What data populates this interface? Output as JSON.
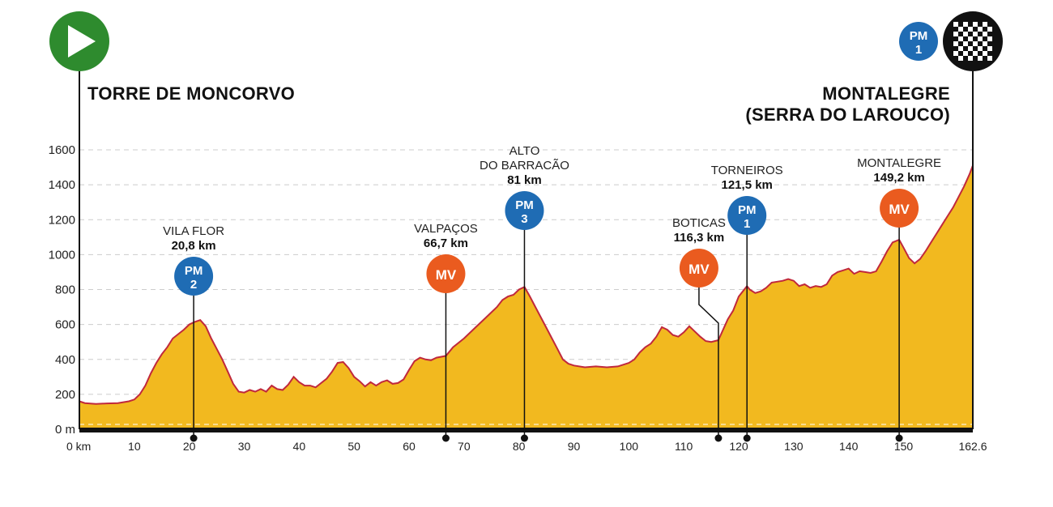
{
  "colors": {
    "terrain_fill": "#f2b91f",
    "profile_line": "#c0283c",
    "pm_badge": "#1f6cb4",
    "mv_badge": "#ea5b1f",
    "start_badge": "#2e8b2e",
    "finish_badge": "#111111",
    "grid": "#cccccc"
  },
  "start": {
    "town": "TORRE DE MONCORVO",
    "icon": "play-icon"
  },
  "finish": {
    "town_line1": "MONTALEGRE",
    "town_line2": "(SERRA DO LAROUCO)",
    "icon": "checkered-flag-icon",
    "badge": {
      "type": "PM",
      "number": "1"
    }
  },
  "chart_data": {
    "type": "area",
    "title": "",
    "xlabel": "",
    "ylabel": "",
    "x_unit": "km",
    "y_unit": "m",
    "xlim": [
      0,
      162.6
    ],
    "ylim": [
      0,
      1600
    ],
    "grid": true,
    "x_ticks": [
      "0 km",
      "10",
      "20",
      "30",
      "40",
      "50",
      "60",
      "70",
      "80",
      "90",
      "100",
      "110",
      "120",
      "130",
      "140",
      "150",
      "162.6"
    ],
    "x_tick_values": [
      0,
      10,
      20,
      30,
      40,
      50,
      60,
      70,
      80,
      90,
      100,
      110,
      120,
      130,
      140,
      150,
      162.6
    ],
    "y_ticks": [
      "0 m",
      "200",
      "400",
      "600",
      "800",
      "1000",
      "1200",
      "1400",
      "1600"
    ],
    "y_tick_values": [
      0,
      200,
      400,
      600,
      800,
      1000,
      1200,
      1400,
      1600
    ],
    "profile": [
      [
        0,
        160
      ],
      [
        1,
        150
      ],
      [
        3,
        145
      ],
      [
        5,
        148
      ],
      [
        7,
        150
      ],
      [
        9,
        160
      ],
      [
        10,
        170
      ],
      [
        11,
        200
      ],
      [
        12,
        250
      ],
      [
        13,
        320
      ],
      [
        14,
        380
      ],
      [
        15,
        430
      ],
      [
        16,
        470
      ],
      [
        17,
        520
      ],
      [
        18,
        545
      ],
      [
        19,
        570
      ],
      [
        20,
        600
      ],
      [
        21,
        615
      ],
      [
        22,
        625
      ],
      [
        23,
        590
      ],
      [
        24,
        520
      ],
      [
        25,
        460
      ],
      [
        26,
        400
      ],
      [
        27,
        330
      ],
      [
        28,
        260
      ],
      [
        29,
        215
      ],
      [
        30,
        210
      ],
      [
        31,
        225
      ],
      [
        32,
        215
      ],
      [
        33,
        230
      ],
      [
        34,
        215
      ],
      [
        35,
        250
      ],
      [
        36,
        230
      ],
      [
        37,
        225
      ],
      [
        38,
        255
      ],
      [
        39,
        300
      ],
      [
        40,
        270
      ],
      [
        41,
        250
      ],
      [
        42,
        250
      ],
      [
        43,
        240
      ],
      [
        44,
        265
      ],
      [
        45,
        290
      ],
      [
        46,
        330
      ],
      [
        47,
        380
      ],
      [
        48,
        385
      ],
      [
        49,
        350
      ],
      [
        50,
        300
      ],
      [
        51,
        275
      ],
      [
        52,
        245
      ],
      [
        53,
        270
      ],
      [
        54,
        250
      ],
      [
        55,
        270
      ],
      [
        56,
        280
      ],
      [
        57,
        260
      ],
      [
        58,
        265
      ],
      [
        59,
        285
      ],
      [
        60,
        340
      ],
      [
        61,
        390
      ],
      [
        62,
        410
      ],
      [
        63,
        400
      ],
      [
        64,
        395
      ],
      [
        65,
        410
      ],
      [
        66.7,
        420
      ],
      [
        68,
        470
      ],
      [
        70,
        520
      ],
      [
        72,
        580
      ],
      [
        74,
        640
      ],
      [
        76,
        700
      ],
      [
        77,
        740
      ],
      [
        78,
        760
      ],
      [
        79,
        770
      ],
      [
        80,
        800
      ],
      [
        81,
        815
      ],
      [
        82,
        760
      ],
      [
        83,
        700
      ],
      [
        84,
        640
      ],
      [
        85,
        580
      ],
      [
        86,
        520
      ],
      [
        87,
        460
      ],
      [
        88,
        400
      ],
      [
        89,
        375
      ],
      [
        90,
        365
      ],
      [
        92,
        355
      ],
      [
        94,
        360
      ],
      [
        96,
        355
      ],
      [
        98,
        360
      ],
      [
        100,
        380
      ],
      [
        101,
        400
      ],
      [
        102,
        440
      ],
      [
        103,
        470
      ],
      [
        104,
        490
      ],
      [
        105,
        530
      ],
      [
        106,
        585
      ],
      [
        107,
        570
      ],
      [
        108,
        540
      ],
      [
        109,
        530
      ],
      [
        110,
        555
      ],
      [
        111,
        590
      ],
      [
        112,
        560
      ],
      [
        113,
        530
      ],
      [
        114,
        505
      ],
      [
        115,
        500
      ],
      [
        116.3,
        510
      ],
      [
        117,
        560
      ],
      [
        118,
        630
      ],
      [
        119,
        680
      ],
      [
        120,
        760
      ],
      [
        121.5,
        820
      ],
      [
        122,
        800
      ],
      [
        123,
        780
      ],
      [
        124,
        790
      ],
      [
        125,
        810
      ],
      [
        126,
        840
      ],
      [
        127,
        845
      ],
      [
        128,
        850
      ],
      [
        129,
        860
      ],
      [
        130,
        850
      ],
      [
        131,
        820
      ],
      [
        132,
        830
      ],
      [
        133,
        810
      ],
      [
        134,
        820
      ],
      [
        135,
        815
      ],
      [
        136,
        830
      ],
      [
        137,
        880
      ],
      [
        138,
        900
      ],
      [
        139,
        910
      ],
      [
        140,
        920
      ],
      [
        141,
        890
      ],
      [
        142,
        905
      ],
      [
        143,
        900
      ],
      [
        144,
        895
      ],
      [
        145,
        905
      ],
      [
        146,
        960
      ],
      [
        147,
        1020
      ],
      [
        148,
        1070
      ],
      [
        149.2,
        1085
      ],
      [
        150,
        1040
      ],
      [
        151,
        980
      ],
      [
        152,
        950
      ],
      [
        153,
        975
      ],
      [
        154,
        1020
      ],
      [
        155,
        1070
      ],
      [
        156,
        1120
      ],
      [
        157,
        1170
      ],
      [
        158,
        1220
      ],
      [
        159,
        1270
      ],
      [
        160,
        1330
      ],
      [
        161,
        1390
      ],
      [
        162,
        1460
      ],
      [
        162.6,
        1510
      ]
    ],
    "waypoints": [
      {
        "name_line1": "VILA FLOR",
        "name_line2": "",
        "km_label": "20,8 km",
        "km": 20.8,
        "badge_type": "PM",
        "badge_number": "2",
        "badge_color": "#1f6cb4"
      },
      {
        "name_line1": "VALPAÇOS",
        "name_line2": "",
        "km_label": "66,7 km",
        "km": 66.7,
        "badge_type": "MV",
        "badge_number": "",
        "badge_color": "#ea5b1f"
      },
      {
        "name_line1": "ALTO",
        "name_line2": "DO BARRACÃO",
        "km_label": "81 km",
        "km": 81,
        "badge_type": "PM",
        "badge_number": "3",
        "badge_color": "#1f6cb4"
      },
      {
        "name_line1": "BOTICAS",
        "name_line2": "",
        "km_label": "116,3 km",
        "km": 116.3,
        "badge_type": "MV",
        "badge_number": "",
        "badge_color": "#ea5b1f"
      },
      {
        "name_line1": "TORNEIROS",
        "name_line2": "",
        "km_label": "121,5 km",
        "km": 121.5,
        "badge_type": "PM",
        "badge_number": "1",
        "badge_color": "#1f6cb4"
      },
      {
        "name_line1": "MONTALEGRE",
        "name_line2": "",
        "km_label": "149,2 km",
        "km": 149.2,
        "badge_type": "MV",
        "badge_number": "",
        "badge_color": "#ea5b1f"
      }
    ]
  }
}
